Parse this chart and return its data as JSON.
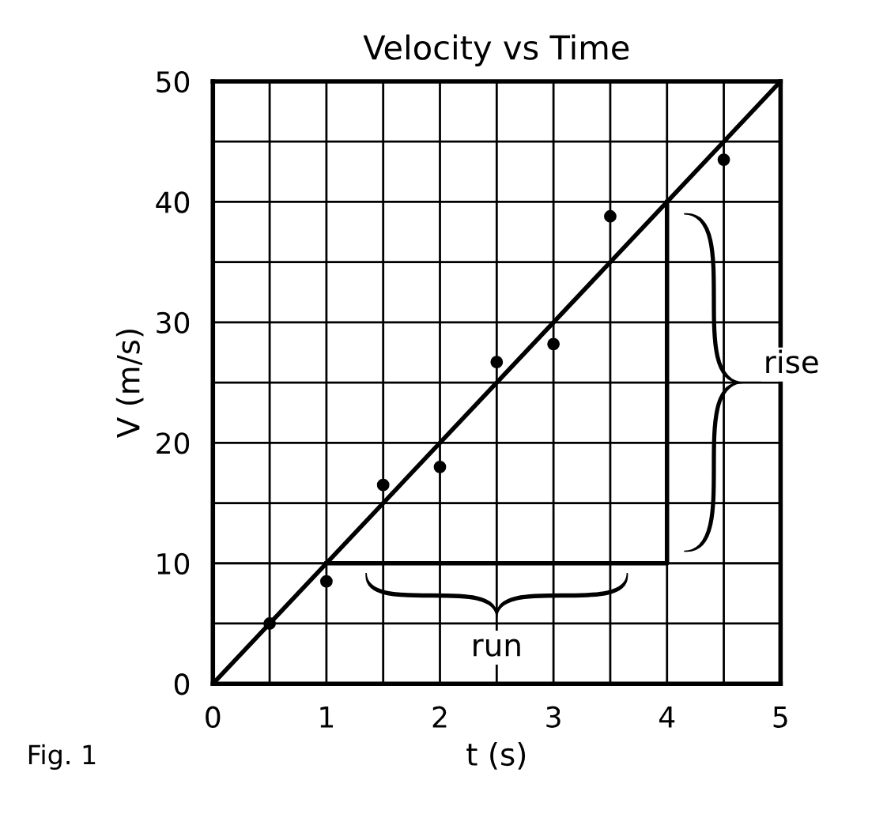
{
  "chart_data": {
    "type": "scatter",
    "title": "Velocity vs Time",
    "xlabel": "t (s)",
    "ylabel": "V (m/s)",
    "x": [
      0.5,
      1,
      1.5,
      2,
      2.5,
      3,
      3.5,
      4.5
    ],
    "series": [
      {
        "color": "#000000",
        "marker": "circle",
        "values": [
          5,
          8.5,
          16.5,
          18,
          26.7,
          28.2,
          38.8,
          43.5
        ]
      },
      {
        "type": "line",
        "color": "#000000",
        "x": [
          0,
          5
        ],
        "values": [
          0,
          50
        ]
      },
      {
        "type": "line",
        "color": "#000000",
        "x": [
          1,
          4,
          4
        ],
        "values": [
          10,
          10,
          40
        ]
      }
    ],
    "xlim": [
      0,
      5
    ],
    "ylim": [
      0,
      50
    ],
    "xticks": [
      0,
      {
        "value": 0.5,
        "label": null
      },
      1,
      {
        "value": 1.5,
        "label": null
      },
      2,
      {
        "value": 2.5,
        "label": null
      },
      3,
      {
        "value": 3.5,
        "label": null
      },
      4,
      {
        "value": 4.5,
        "label": null
      },
      5
    ],
    "yticks": [
      0,
      {
        "value": 5,
        "label": null
      },
      10,
      {
        "value": 15,
        "label": null
      },
      20,
      {
        "value": 25,
        "label": null
      },
      30,
      {
        "value": 35,
        "label": null
      },
      40,
      {
        "value": 45,
        "label": null
      },
      50
    ],
    "grid": true,
    "annotations": [
      "run",
      "rise",
      "Fig. 1"
    ]
  }
}
